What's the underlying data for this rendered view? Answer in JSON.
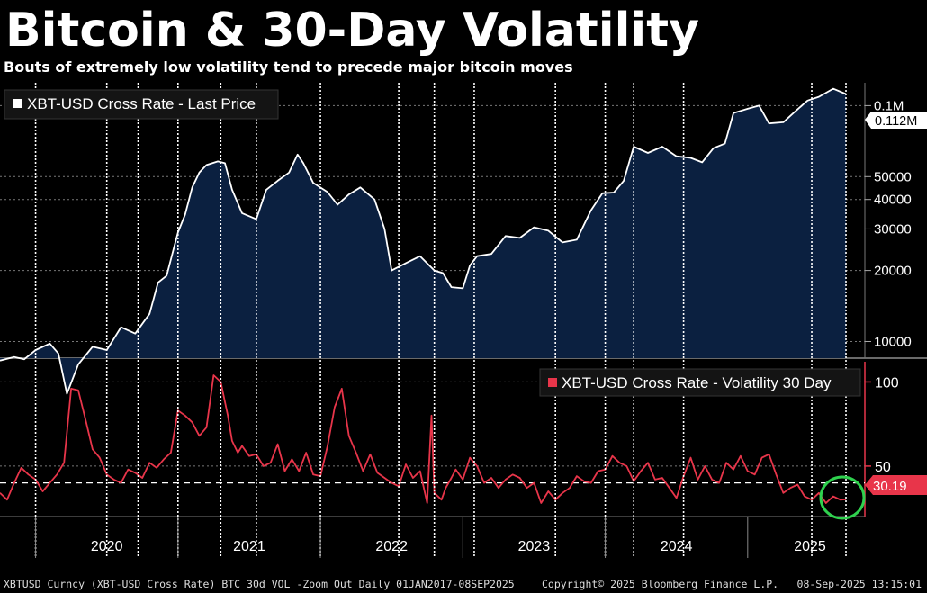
{
  "title": "Bitcoin & 30-Day Volatility",
  "subtitle": "Bouts of extremely low volatility tend to precede major bitcoin moves",
  "colors": {
    "background": "#000000",
    "price_line": "#ffffff",
    "price_fill": "#0b2040",
    "volatility_line": "#e8354a",
    "marker_lines": "#ffffff",
    "circle": "#2fd14e"
  },
  "footer": {
    "left": "XBTUSD Curncy (XBT-USD Cross Rate) BTC 30d VOL -Zoom Out  Daily 01JAN2017-08SEP2025",
    "middle": "Copyright© 2025 Bloomberg Finance L.P.",
    "right": "08-Sep-2025 13:15:01"
  },
  "chart_data": [
    {
      "type": "area",
      "title": "XBT-USD Cross Rate - Last Price",
      "legend": "XBT-USD Cross Rate - Last Price",
      "y_scale": "log",
      "ylim": [
        8500,
        125000
      ],
      "y_ticks": [
        10000,
        20000,
        30000,
        40000,
        50000,
        100000
      ],
      "y_tick_labels": [
        "10000",
        "20000",
        "30000",
        "40000",
        "50000",
        "0.1M"
      ],
      "last_value_label": "0.112M",
      "x_range": [
        2019.75,
        2025.69
      ],
      "series": [
        {
          "name": "XBT-USD Cross Rate - Last Price",
          "x": [
            2019.75,
            2019.85,
            2019.92,
            2020.0,
            2020.1,
            2020.16,
            2020.22,
            2020.3,
            2020.4,
            2020.5,
            2020.6,
            2020.7,
            2020.8,
            2020.86,
            2020.92,
            2020.96,
            2021.0,
            2021.05,
            2021.1,
            2021.15,
            2021.2,
            2021.28,
            2021.33,
            2021.38,
            2021.45,
            2021.55,
            2021.62,
            2021.7,
            2021.78,
            2021.84,
            2021.88,
            2021.95,
            2022.05,
            2022.12,
            2022.2,
            2022.28,
            2022.38,
            2022.45,
            2022.5,
            2022.6,
            2022.7,
            2022.8,
            2022.86,
            2022.92,
            2023.0,
            2023.05,
            2023.1,
            2023.2,
            2023.3,
            2023.4,
            2023.5,
            2023.6,
            2023.7,
            2023.8,
            2023.9,
            2023.98,
            2024.06,
            2024.13,
            2024.2,
            2024.3,
            2024.4,
            2024.5,
            2024.6,
            2024.68,
            2024.76,
            2024.84,
            2024.9,
            2025.0,
            2025.08,
            2025.15,
            2025.25,
            2025.33,
            2025.42,
            2025.5,
            2025.6,
            2025.69
          ],
          "y": [
            8300,
            8600,
            8400,
            9200,
            9800,
            8900,
            6000,
            8000,
            9500,
            9200,
            11500,
            10800,
            13100,
            17800,
            19000,
            23500,
            29000,
            34500,
            45000,
            52000,
            56000,
            58000,
            57000,
            44000,
            35000,
            33000,
            44000,
            48000,
            52000,
            62000,
            57000,
            47000,
            43000,
            38000,
            42000,
            45000,
            40000,
            30000,
            20000,
            21500,
            23000,
            20000,
            19500,
            17000,
            16800,
            21000,
            23000,
            23500,
            28000,
            27500,
            30500,
            29500,
            26300,
            27000,
            36000,
            42500,
            42800,
            48000,
            67000,
            63000,
            67000,
            61000,
            60000,
            57500,
            66000,
            69000,
            93000,
            97000,
            100000,
            84000,
            85000,
            94000,
            105000,
            109000,
            118000,
            112000
          ]
        }
      ]
    },
    {
      "type": "line",
      "title": "XBT-USD Cross Rate - Volatility 30 Day",
      "legend": "XBT-USD Cross Rate - Volatility 30 Day",
      "ylim": [
        20,
        112
      ],
      "y_ticks": [
        50,
        100
      ],
      "y_tick_labels": [
        "50",
        "100"
      ],
      "reference_line": 40,
      "last_value_label": "30.19",
      "x_range": [
        2019.75,
        2025.69
      ],
      "series": [
        {
          "name": "XBT-USD Cross Rate - Volatility 30 Day",
          "x": [
            2019.75,
            2019.8,
            2019.85,
            2019.9,
            2019.95,
            2020.0,
            2020.05,
            2020.1,
            2020.15,
            2020.2,
            2020.25,
            2020.3,
            2020.35,
            2020.4,
            2020.45,
            2020.5,
            2020.55,
            2020.6,
            2020.65,
            2020.7,
            2020.75,
            2020.8,
            2020.85,
            2020.9,
            2020.95,
            2021.0,
            2021.05,
            2021.1,
            2021.15,
            2021.2,
            2021.25,
            2021.3,
            2021.35,
            2021.38,
            2021.42,
            2021.45,
            2021.5,
            2021.55,
            2021.6,
            2021.65,
            2021.7,
            2021.75,
            2021.8,
            2021.85,
            2021.9,
            2021.95,
            2022.0,
            2022.05,
            2022.1,
            2022.15,
            2022.2,
            2022.25,
            2022.3,
            2022.35,
            2022.4,
            2022.45,
            2022.5,
            2022.55,
            2022.6,
            2022.65,
            2022.7,
            2022.75,
            2022.78,
            2022.8,
            2022.85,
            2022.88,
            2022.92,
            2022.95,
            2023.0,
            2023.05,
            2023.1,
            2023.15,
            2023.2,
            2023.25,
            2023.3,
            2023.35,
            2023.4,
            2023.45,
            2023.5,
            2023.55,
            2023.6,
            2023.65,
            2023.7,
            2023.75,
            2023.8,
            2023.85,
            2023.9,
            2023.95,
            2024.0,
            2024.05,
            2024.1,
            2024.15,
            2024.2,
            2024.25,
            2024.3,
            2024.35,
            2024.4,
            2024.45,
            2024.5,
            2024.55,
            2024.6,
            2024.65,
            2024.7,
            2024.75,
            2024.8,
            2024.85,
            2024.9,
            2024.95,
            2025.0,
            2025.05,
            2025.1,
            2025.15,
            2025.2,
            2025.25,
            2025.3,
            2025.35,
            2025.4,
            2025.45,
            2025.5,
            2025.55,
            2025.6,
            2025.65,
            2025.69
          ],
          "y": [
            34,
            30,
            40,
            49,
            45,
            42,
            35,
            40,
            45,
            52,
            96,
            95,
            78,
            60,
            55,
            45,
            42,
            40,
            48,
            46,
            43,
            52,
            49,
            54,
            58,
            83,
            80,
            76,
            68,
            73,
            104,
            100,
            80,
            65,
            58,
            62,
            56,
            57,
            50,
            52,
            63,
            47,
            54,
            47,
            58,
            45,
            44,
            62,
            85,
            96,
            68,
            58,
            47,
            57,
            46,
            43,
            40,
            38,
            51,
            43,
            47,
            28,
            80,
            34,
            30,
            37,
            43,
            48,
            42,
            55,
            50,
            40,
            43,
            37,
            42,
            45,
            43,
            37,
            40,
            28,
            35,
            30,
            34,
            37,
            44,
            41,
            40,
            47,
            48,
            56,
            52,
            50,
            41,
            47,
            52,
            42,
            43,
            37,
            31,
            44,
            55,
            42,
            50,
            42,
            40,
            52,
            48,
            56,
            47,
            45,
            55,
            57,
            45,
            34,
            37,
            39,
            32,
            30,
            34,
            28,
            32,
            30,
            30.19
          ]
        }
      ],
      "annotation": "green circle around latest value"
    }
  ],
  "x_axis": {
    "labels": [
      "2020",
      "2021",
      "2022",
      "2023",
      "2024",
      "2025"
    ],
    "label_positions": [
      2020.0,
      2021.0,
      2022.0,
      2023.0,
      2024.0,
      2025.0
    ]
  },
  "marker_dates": [
    2020.0,
    2020.5,
    2020.72,
    2021.0,
    2021.3,
    2021.55,
    2022.0,
    2022.55,
    2022.8,
    2023.08,
    2023.65,
    2024.0,
    2024.2,
    2024.55,
    2025.45,
    2025.69
  ]
}
